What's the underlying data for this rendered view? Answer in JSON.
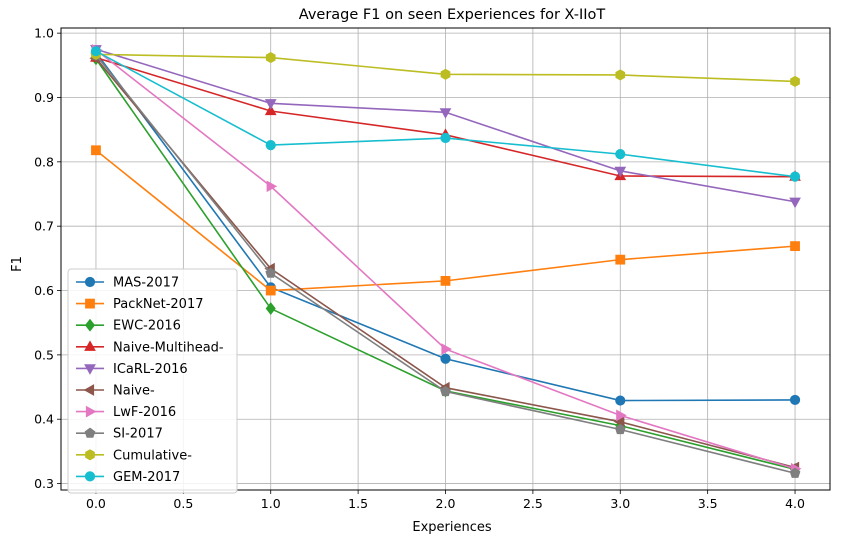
{
  "chart_data": {
    "type": "line",
    "title": "Average F1 on seen Experiences for X-IIoT",
    "xlabel": "Experiences",
    "ylabel": "F1",
    "xlim": [
      -0.2,
      4.2
    ],
    "ylim": [
      0.29,
      1.008
    ],
    "xticks": [
      0.0,
      0.5,
      1.0,
      1.5,
      2.0,
      2.5,
      3.0,
      3.5,
      4.0
    ],
    "xtick_labels": [
      "0.0",
      "0.5",
      "1.0",
      "1.5",
      "2.0",
      "2.5",
      "3.0",
      "3.5",
      "4.0"
    ],
    "yticks": [
      0.3,
      0.4,
      0.5,
      0.6,
      0.7,
      0.8,
      0.9,
      1.0
    ],
    "ytick_labels": [
      "0.3",
      "0.4",
      "0.5",
      "0.6",
      "0.7",
      "0.8",
      "0.9",
      "1.0"
    ],
    "grid": true,
    "legend_position": "lower-left",
    "x": [
      0,
      1,
      2,
      3,
      4
    ],
    "series": [
      {
        "name": "MAS-2017",
        "color": "#1f77b4",
        "marker": "circle",
        "values": [
          0.97,
          0.605,
          0.494,
          0.429,
          0.43
        ]
      },
      {
        "name": "PackNet-2017",
        "color": "#ff7f0e",
        "marker": "square",
        "values": [
          0.818,
          0.6,
          0.615,
          0.648,
          0.669
        ]
      },
      {
        "name": "EWC-2016",
        "color": "#2ca02c",
        "marker": "diamond",
        "values": [
          0.96,
          0.572,
          0.444,
          0.39,
          0.322
        ]
      },
      {
        "name": "Naive-Multihead-",
        "color": "#d62728",
        "marker": "triangle-up",
        "values": [
          0.962,
          0.879,
          0.842,
          0.778,
          0.777
        ]
      },
      {
        "name": "ICaRL-2016",
        "color": "#9467bd",
        "marker": "triangle-down",
        "values": [
          0.975,
          0.891,
          0.877,
          0.786,
          0.738
        ]
      },
      {
        "name": "Naive-",
        "color": "#8c564b",
        "marker": "triangle-left",
        "values": [
          0.961,
          0.634,
          0.449,
          0.396,
          0.325
        ]
      },
      {
        "name": "LwF-2016",
        "color": "#e377c2",
        "marker": "triangle-right",
        "values": [
          0.974,
          0.762,
          0.509,
          0.406,
          0.323
        ]
      },
      {
        "name": "SI-2017",
        "color": "#7f7f7f",
        "marker": "pentagon",
        "values": [
          0.966,
          0.627,
          0.443,
          0.384,
          0.316
        ]
      },
      {
        "name": "Cumulative-",
        "color": "#bcbd22",
        "marker": "hexagon",
        "values": [
          0.967,
          0.962,
          0.936,
          0.935,
          0.925
        ]
      },
      {
        "name": "GEM-2017",
        "color": "#17becf",
        "marker": "circle",
        "values": [
          0.972,
          0.826,
          0.837,
          0.812,
          0.777
        ]
      }
    ]
  }
}
